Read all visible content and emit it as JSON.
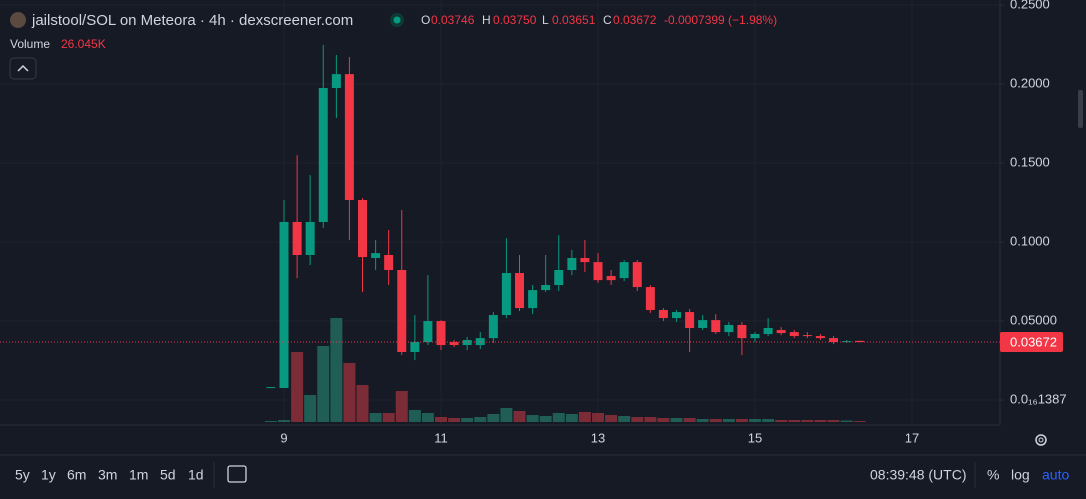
{
  "chart_data": {
    "type": "candlestick",
    "title": "jailstool/SOL on Meteora · 4h · dexscreener.com",
    "legend_values": {
      "open_label": "O",
      "open": "0.03746",
      "high_label": "H",
      "high": "0.03750",
      "low_label": "L",
      "low": "0.03651",
      "close_label": "C",
      "close": "0.03672",
      "change": "-0.0007399 (−1.98%)"
    },
    "volume_name": "Volume",
    "volume_last_label": "26.045K",
    "up_color": "#089981",
    "down_color": "#f23645",
    "up_volume_color": "#1f5d55",
    "down_volume_color": "#7b2c36",
    "grid": true,
    "xlim": [
      5.382,
      18.121
    ],
    "xticks": [
      9,
      11,
      13,
      15,
      17
    ],
    "ylim": [
      -0.0158,
      0.2532
    ],
    "yticks": [
      {
        "value": 1.387e-18,
        "label": "0.0₁₆1387"
      },
      {
        "value": 0.05,
        "label": "0.05000"
      },
      {
        "value": 0.1,
        "label": "0.1000"
      },
      {
        "value": 0.15,
        "label": "0.1500"
      },
      {
        "value": 0.2,
        "label": "0.2000"
      },
      {
        "value": 0.25,
        "label": "0.2500"
      }
    ],
    "x": [
      8.833,
      9,
      9.167,
      9.333,
      9.5,
      9.667,
      9.833,
      10,
      10.167,
      10.333,
      10.5,
      10.667,
      10.833,
      11,
      11.167,
      11.333,
      11.5,
      11.667,
      11.833,
      12,
      12.167,
      12.333,
      12.5,
      12.667,
      12.833,
      13,
      13.167,
      13.333,
      13.5,
      13.667,
      13.833,
      14,
      14.167,
      14.333,
      14.5,
      14.667,
      14.833,
      15,
      15.167,
      15.333,
      15.5,
      15.667,
      15.833,
      16,
      16.167,
      16.333
    ],
    "open": [
      0.008,
      0.0076,
      0.1127,
      0.0918,
      0.1127,
      0.1975,
      0.2063,
      0.1266,
      0.0899,
      0.0918,
      0.0823,
      0.0304,
      0.0367,
      0.05,
      0.0367,
      0.0348,
      0.0348,
      0.0392,
      0.0538,
      0.0804,
      0.0582,
      0.0696,
      0.0728,
      0.0823,
      0.0899,
      0.0873,
      0.0785,
      0.0772,
      0.0873,
      0.0715,
      0.057,
      0.0519,
      0.0557,
      0.0456,
      0.0506,
      0.043,
      0.0475,
      0.0392,
      0.0418,
      0.0443,
      0.043,
      0.0411,
      0.0405,
      0.0392,
      0.0367,
      0.03746
    ],
    "high": [
      0.0083,
      0.1266,
      0.155,
      0.1424,
      0.2247,
      0.2184,
      0.2171,
      0.1278,
      0.1013,
      0.1076,
      0.1203,
      0.0538,
      0.0791,
      0.0506,
      0.038,
      0.0399,
      0.043,
      0.0557,
      0.1025,
      0.0918,
      0.0728,
      0.0918,
      0.1044,
      0.095,
      0.1013,
      0.093,
      0.0823,
      0.0886,
      0.0886,
      0.0728,
      0.0582,
      0.057,
      0.0576,
      0.0538,
      0.0544,
      0.0494,
      0.0494,
      0.043,
      0.0519,
      0.0462,
      0.0443,
      0.043,
      0.0418,
      0.0405,
      0.038,
      0.0375
    ],
    "low": [
      0.008,
      0.0076,
      0.0772,
      0.0854,
      0.1089,
      0.1785,
      0.1013,
      0.0684,
      0.0823,
      0.0728,
      0.0285,
      0.0253,
      0.0348,
      0.0316,
      0.0335,
      0.0316,
      0.0323,
      0.0361,
      0.0519,
      0.0563,
      0.0544,
      0.0684,
      0.069,
      0.0791,
      0.081,
      0.0741,
      0.0728,
      0.0753,
      0.069,
      0.0551,
      0.05,
      0.0494,
      0.0304,
      0.0443,
      0.0418,
      0.0405,
      0.0285,
      0.0367,
      0.0405,
      0.0411,
      0.0392,
      0.0392,
      0.038,
      0.0354,
      0.0361,
      0.03651
    ],
    "close": [
      0.0082,
      0.1127,
      0.0918,
      0.1127,
      0.1975,
      0.2063,
      0.1266,
      0.0905,
      0.093,
      0.0823,
      0.0304,
      0.0367,
      0.05,
      0.0348,
      0.0348,
      0.038,
      0.0392,
      0.0538,
      0.0804,
      0.0582,
      0.0696,
      0.0728,
      0.0823,
      0.0899,
      0.0873,
      0.0759,
      0.0759,
      0.0873,
      0.0715,
      0.057,
      0.0519,
      0.0557,
      0.0456,
      0.0506,
      0.043,
      0.0475,
      0.0392,
      0.0418,
      0.0456,
      0.0424,
      0.0405,
      0.0405,
      0.0392,
      0.0367,
      0.0373,
      0.03672
    ],
    "volume": [
      26000,
      52000,
      1820000,
      702000,
      1976000,
      2704000,
      1534000,
      962000,
      234000,
      234000,
      806000,
      312000,
      234000,
      130000,
      104000,
      104000,
      130000,
      208000,
      364000,
      286000,
      182000,
      156000,
      234000,
      208000,
      260000,
      234000,
      182000,
      156000,
      130000,
      130000,
      104000,
      104000,
      104000,
      78000,
      78000,
      78000,
      78000,
      78000,
      78000,
      52000,
      52000,
      52000,
      52000,
      52000,
      39000,
      26045
    ]
  },
  "toolbar": {
    "ranges": [
      "5y",
      "1y",
      "6m",
      "3m",
      "1m",
      "5d",
      "1d"
    ],
    "clock": "08:39:48 (UTC)",
    "percent": "%",
    "log": "log",
    "auto": "auto"
  }
}
